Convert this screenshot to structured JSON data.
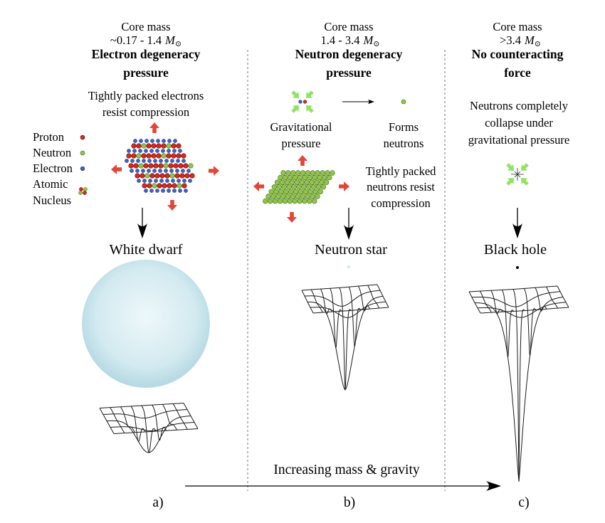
{
  "mass_symbol": "M",
  "mass_subscript": "⊙",
  "columns": {
    "a": {
      "core_mass_label": "Core mass",
      "mass_range": "~0.17 - 1.4",
      "heading_line1": "Electron degeneracy",
      "heading_line2": "pressure",
      "description_line1": "Tightly packed electrons",
      "description_line2": "resist compression",
      "remnant_name": "White dwarf",
      "panel_label": "a)"
    },
    "b": {
      "core_mass_label": "Core mass",
      "mass_range": "1.4 - 3.4",
      "heading_line1": "Neutron degeneracy",
      "heading_line2": "pressure",
      "input_label_line1": "Gravitational",
      "input_label_line2": "pressure",
      "output_label_line1": "Forms",
      "output_label_line2": "neutrons",
      "description_line1": "Tightly packed",
      "description_line2": "neutrons resist",
      "description_line3": "compression",
      "remnant_name": "Neutron star",
      "panel_label": "b)"
    },
    "c": {
      "core_mass_label": "Core mass",
      "mass_range": ">3.4",
      "heading_line1": "No counteracting",
      "heading_line2": "force",
      "description_line1": "Neutrons completely",
      "description_line2": "collapse under",
      "description_line3": "gravitational pressure",
      "remnant_name": "Black hole",
      "panel_label": "c)"
    }
  },
  "legend": {
    "items": [
      {
        "label": "Proton"
      },
      {
        "label": "Neutron"
      },
      {
        "label": "Electron"
      },
      {
        "label_line1": "Atomic",
        "label_line2": "Nucleus"
      }
    ]
  },
  "axis_label": "Increasing mass & gravity",
  "colors": {
    "proton": "#d7281c",
    "neutron": "#8fc649",
    "electron": "#3d5fc9",
    "pressure_arrow": "#e2463b",
    "gravity_arrow": "#8fe35f",
    "neutron_star": "#cfe7ee",
    "black_hole": "#000000"
  }
}
